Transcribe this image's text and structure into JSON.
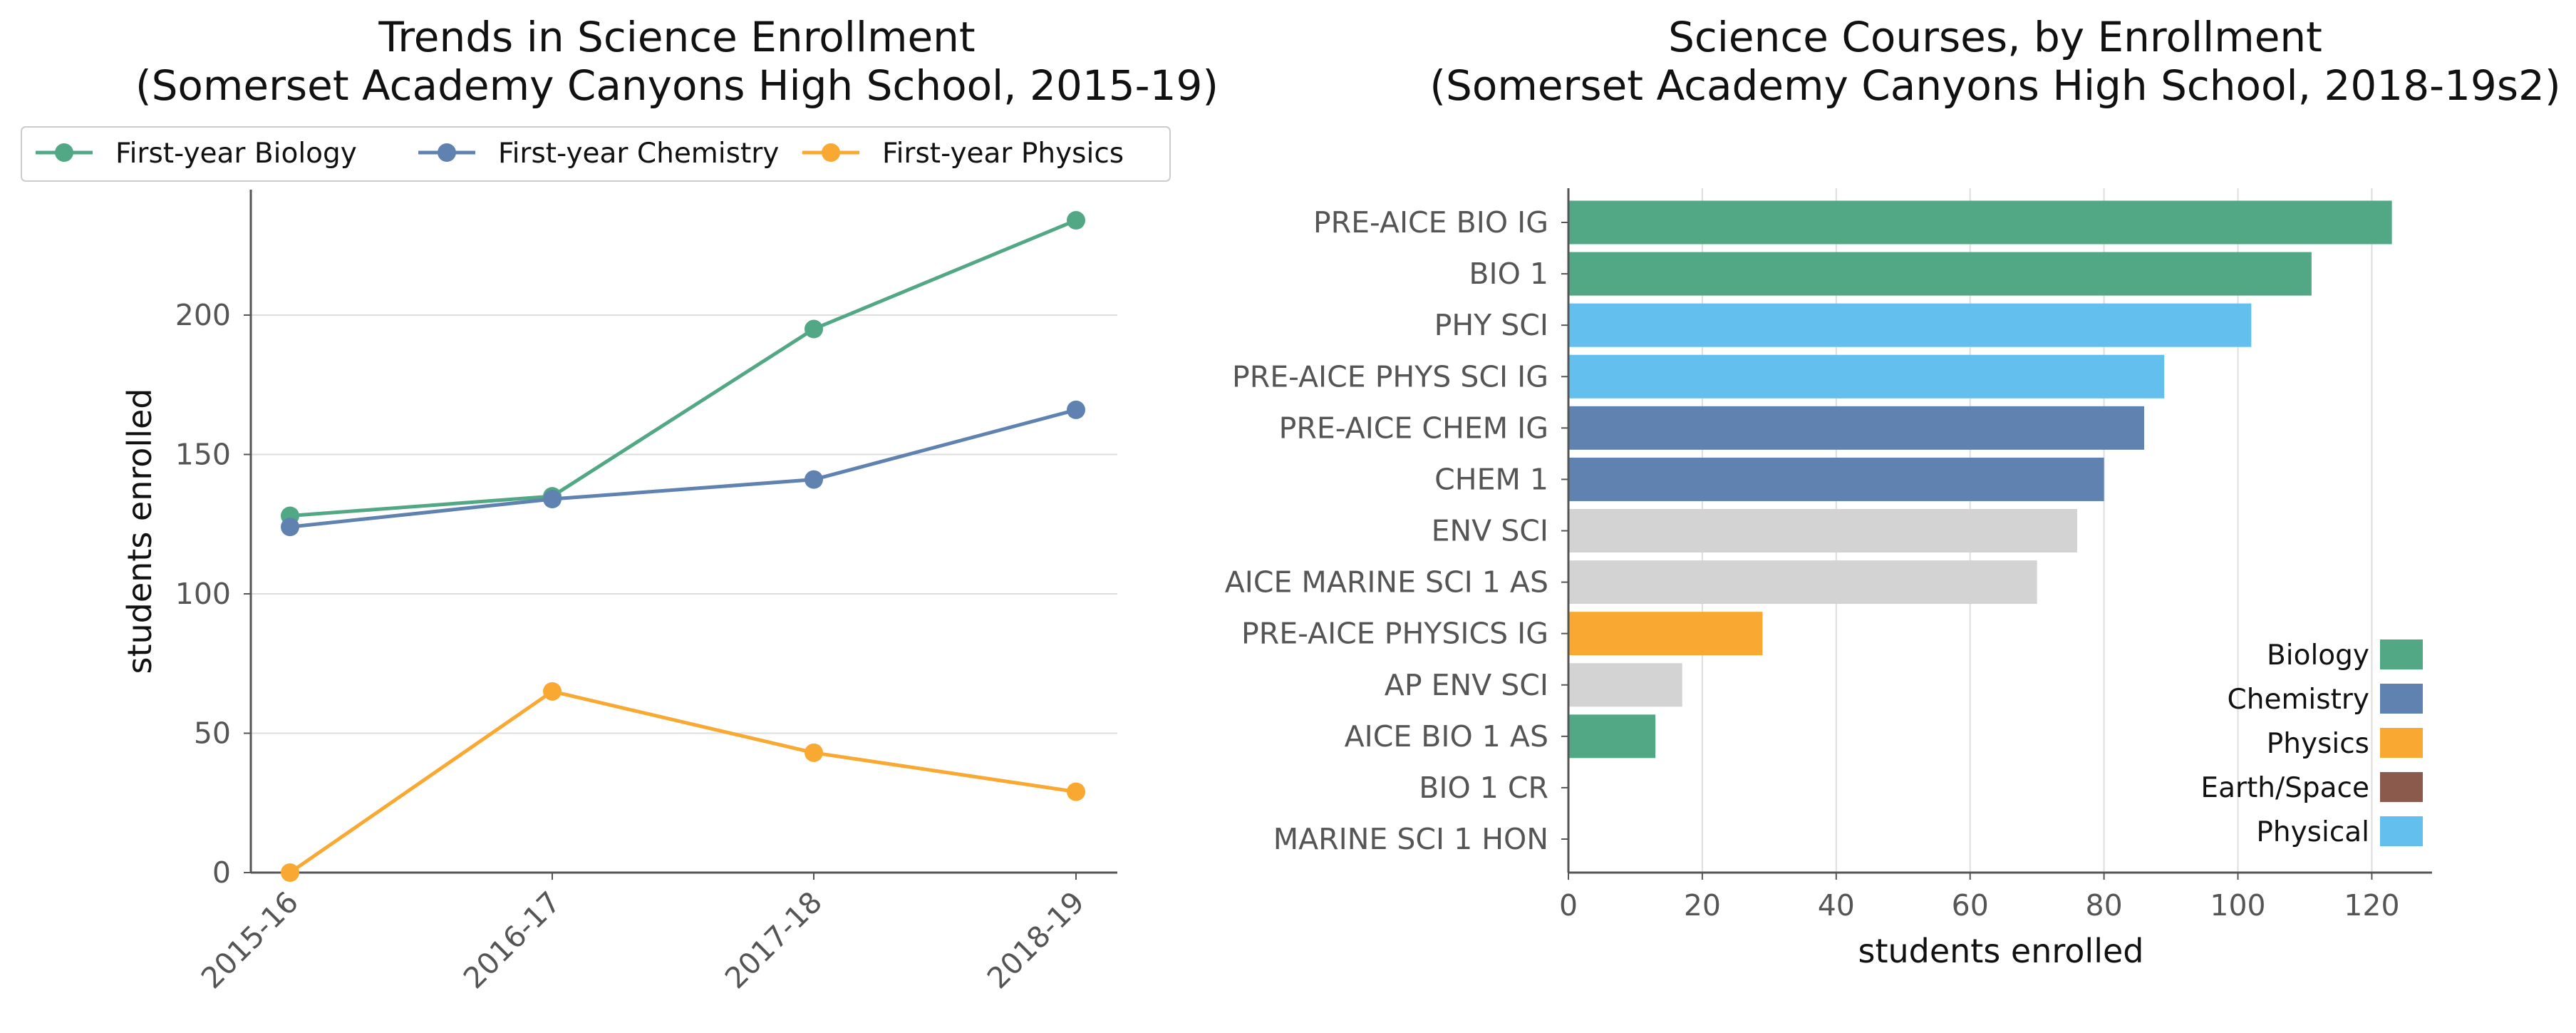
{
  "chart_data": [
    {
      "type": "line",
      "title": "Trends in Science Enrollment\n(Somerset Academy Canyons High School, 2015-19)",
      "xlabel": "",
      "ylabel": "students enrolled",
      "x": [
        "2015-16",
        "2016-17",
        "2017-18",
        "2018-19"
      ],
      "ylim": [
        0,
        245
      ],
      "yticks": [
        0,
        50,
        100,
        150,
        200
      ],
      "grid": "horizontal",
      "legend": "top",
      "series": [
        {
          "name": "First-year Biology",
          "color": "#52a885",
          "values": [
            128,
            135,
            195,
            234
          ]
        },
        {
          "name": "First-year Chemistry",
          "color": "#5f82b1",
          "values": [
            124,
            134,
            141,
            166
          ]
        },
        {
          "name": "First-year Physics",
          "color": "#f9a931",
          "values": [
            0,
            65,
            43,
            29
          ]
        }
      ]
    },
    {
      "type": "bar",
      "orientation": "horizontal",
      "title": "Science Courses, by Enrollment\n(Somerset Academy Canyons High School, 2018-19s2)",
      "xlabel": "students enrolled",
      "ylabel": "",
      "xlim": [
        0,
        129
      ],
      "xticks": [
        0,
        20,
        40,
        60,
        80,
        100,
        120
      ],
      "grid": "vertical",
      "legend": "bottom-right",
      "categories": [
        "PRE-AICE BIO IG",
        "BIO 1",
        "PHY SCI",
        "PRE-AICE PHYS SCI IG",
        "PRE-AICE CHEM IG",
        "CHEM 1",
        "ENV SCI",
        "AICE MARINE SCI 1 AS",
        "PRE-AICE PHYSICS IG",
        "AP ENV SCI",
        "AICE BIO 1 AS",
        "BIO 1 CR",
        "MARINE SCI 1 HON"
      ],
      "values": [
        123,
        111,
        102,
        89,
        86,
        80,
        76,
        70,
        29,
        17,
        13,
        0,
        0
      ],
      "subjects": [
        "Biology",
        "Biology",
        "Physical",
        "Physical",
        "Chemistry",
        "Chemistry",
        "Other",
        "Other",
        "Physics",
        "Other",
        "Biology",
        "Biology",
        "Other"
      ],
      "subject_colors": {
        "Biology": "#52a885",
        "Chemistry": "#5f82b1",
        "Physics": "#f9a931",
        "Earth/Space": "#8b5a4d",
        "Physical": "#63bfed",
        "Other": "#d3d3d3"
      },
      "legend_entries": [
        "Biology",
        "Chemistry",
        "Physics",
        "Earth/Space",
        "Physical"
      ]
    }
  ]
}
